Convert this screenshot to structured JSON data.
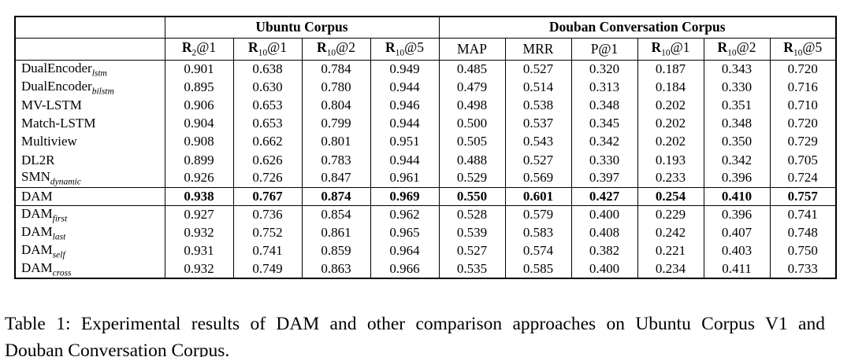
{
  "colors": {
    "background": "#ffffff",
    "text": "#000000",
    "border": "#000000"
  },
  "table": {
    "groups": [
      {
        "label": "Ubuntu Corpus",
        "span": 4
      },
      {
        "label": "Douban Conversation Corpus",
        "span": 6
      }
    ],
    "metrics": [
      {
        "base": "R",
        "sub": "2",
        "rest": "@1",
        "bold_base": true
      },
      {
        "base": "R",
        "sub": "10",
        "rest": "@1",
        "bold_base": true
      },
      {
        "base": "R",
        "sub": "10",
        "rest": "@2",
        "bold_base": true
      },
      {
        "base": "R",
        "sub": "10",
        "rest": "@5",
        "bold_base": true
      },
      {
        "base": "MAP",
        "sub": "",
        "rest": "",
        "bold_base": false
      },
      {
        "base": "MRR",
        "sub": "",
        "rest": "",
        "bold_base": false
      },
      {
        "base": "P@1",
        "sub": "",
        "rest": "",
        "bold_base": false
      },
      {
        "base": "R",
        "sub": "10",
        "rest": "@1",
        "bold_base": true
      },
      {
        "base": "R",
        "sub": "10",
        "rest": "@2",
        "bold_base": true
      },
      {
        "base": "R",
        "sub": "10",
        "rest": "@5",
        "bold_base": true
      }
    ],
    "row_groups": [
      {
        "rows": [
          {
            "name": "DualEncoder",
            "sub": "lstm",
            "bold": false,
            "values": [
              "0.901",
              "0.638",
              "0.784",
              "0.949",
              "0.485",
              "0.527",
              "0.320",
              "0.187",
              "0.343",
              "0.720"
            ]
          },
          {
            "name": "DualEncoder",
            "sub": "bilstm",
            "bold": false,
            "values": [
              "0.895",
              "0.630",
              "0.780",
              "0.944",
              "0.479",
              "0.514",
              "0.313",
              "0.184",
              "0.330",
              "0.716"
            ]
          },
          {
            "name": "MV-LSTM",
            "sub": "",
            "bold": false,
            "values": [
              "0.906",
              "0.653",
              "0.804",
              "0.946",
              "0.498",
              "0.538",
              "0.348",
              "0.202",
              "0.351",
              "0.710"
            ]
          },
          {
            "name": "Match-LSTM",
            "sub": "",
            "bold": false,
            "values": [
              "0.904",
              "0.653",
              "0.799",
              "0.944",
              "0.500",
              "0.537",
              "0.345",
              "0.202",
              "0.348",
              "0.720"
            ]
          },
          {
            "name": "Multiview",
            "sub": "",
            "bold": false,
            "values": [
              "0.908",
              "0.662",
              "0.801",
              "0.951",
              "0.505",
              "0.543",
              "0.342",
              "0.202",
              "0.350",
              "0.729"
            ]
          },
          {
            "name": "DL2R",
            "sub": "",
            "bold": false,
            "values": [
              "0.899",
              "0.626",
              "0.783",
              "0.944",
              "0.488",
              "0.527",
              "0.330",
              "0.193",
              "0.342",
              "0.705"
            ]
          },
          {
            "name": "SMN",
            "sub": "dynamic",
            "bold": false,
            "values": [
              "0.926",
              "0.726",
              "0.847",
              "0.961",
              "0.529",
              "0.569",
              "0.397",
              "0.233",
              "0.396",
              "0.724"
            ]
          }
        ]
      },
      {
        "rows": [
          {
            "name": "DAM",
            "sub": "",
            "bold": true,
            "values": [
              "0.938",
              "0.767",
              "0.874",
              "0.969",
              "0.550",
              "0.601",
              "0.427",
              "0.254",
              "0.410",
              "0.757"
            ]
          }
        ]
      },
      {
        "rows": [
          {
            "name": "DAM",
            "sub": "first",
            "bold": false,
            "values": [
              "0.927",
              "0.736",
              "0.854",
              "0.962",
              "0.528",
              "0.579",
              "0.400",
              "0.229",
              "0.396",
              "0.741"
            ]
          },
          {
            "name": "DAM",
            "sub": "last",
            "bold": false,
            "values": [
              "0.932",
              "0.752",
              "0.861",
              "0.965",
              "0.539",
              "0.583",
              "0.408",
              "0.242",
              "0.407",
              "0.748"
            ]
          },
          {
            "name": "DAM",
            "sub": "self",
            "bold": false,
            "values": [
              "0.931",
              "0.741",
              "0.859",
              "0.964",
              "0.527",
              "0.574",
              "0.382",
              "0.221",
              "0.403",
              "0.750"
            ]
          },
          {
            "name": "DAM",
            "sub": "cross",
            "bold": false,
            "values": [
              "0.932",
              "0.749",
              "0.863",
              "0.966",
              "0.535",
              "0.585",
              "0.400",
              "0.234",
              "0.411",
              "0.733"
            ]
          }
        ]
      }
    ]
  },
  "caption": {
    "line1": "Table 1:  Experimental results of DAM and other comparison approaches on Ubuntu Corpus V1 and",
    "line2": "Douban Conversation Corpus."
  }
}
